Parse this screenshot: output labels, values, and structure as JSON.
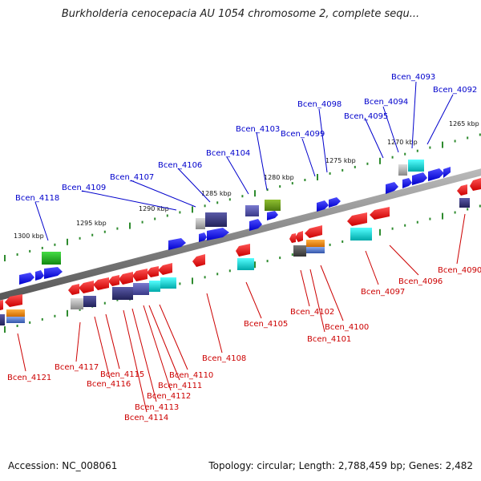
{
  "title": "Burkholderia cenocepacia AU 1054 chromosome 2, complete sequ...",
  "footer": {
    "accession": "Accession: NC_008061",
    "info": "Topology: circular; Length: 2,788,459 bp; Genes: 2,482"
  },
  "colors": {
    "backbone": "#8a8a8a",
    "tick": "#2e8b2e",
    "forward_label": "#0000cc",
    "reverse_label": "#cc0000",
    "forward_gene": "#1a1aff",
    "reverse_gene": "#ff1a1a"
  },
  "scale": {
    "unit": "kbp",
    "ticks": [
      {
        "label": "1265 kbp",
        "kbp": 1265
      },
      {
        "label": "1270 kbp",
        "kbp": 1270
      },
      {
        "label": "1275 kbp",
        "kbp": 1275
      },
      {
        "label": "1280 kbp",
        "kbp": 1280
      },
      {
        "label": "1285 kbp",
        "kbp": 1285
      },
      {
        "label": "1290 kbp",
        "kbp": 1290
      },
      {
        "label": "1295 kbp",
        "kbp": 1295
      },
      {
        "label": "1300 kbp",
        "kbp": 1300
      }
    ]
  },
  "forward_labels": [
    "Bcen_4093",
    "Bcen_4092",
    "Bcen_4094",
    "Bcen_4098",
    "Bcen_4095",
    "Bcen_4099",
    "Bcen_4103",
    "Bcen_4104",
    "Bcen_4106",
    "Bcen_4107",
    "Bcen_4109",
    "Bcen_4118"
  ],
  "reverse_labels": [
    "Bcen_4090",
    "Bcen_4096",
    "Bcen_4097",
    "Bcen_4100",
    "Bcen_4102",
    "Bcen_4101",
    "Bcen_4105",
    "Bcen_4108",
    "Bcen_4110",
    "Bcen_4111",
    "Bcen_4112",
    "Bcen_4113",
    "Bcen_4114",
    "Bcen_4115",
    "Bcen_4116",
    "Bcen_4117",
    "Bcen_4121"
  ]
}
